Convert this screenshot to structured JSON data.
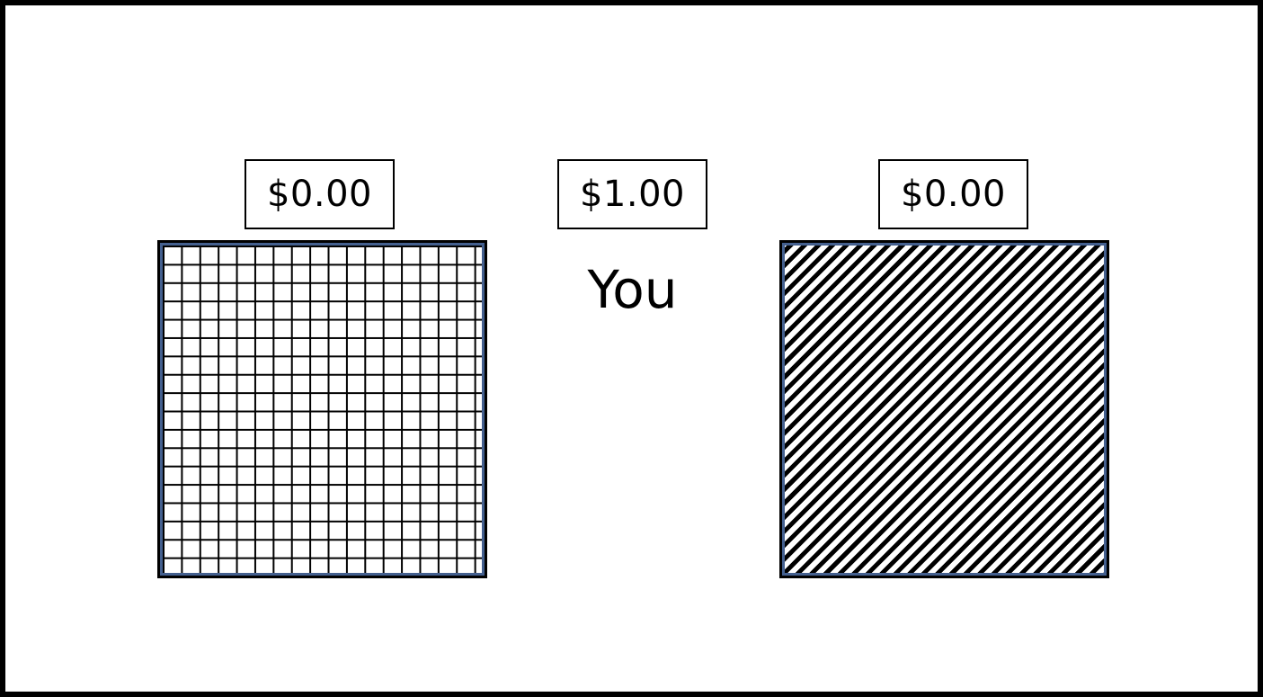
{
  "left_option": {
    "amount": "$0.00",
    "pattern": "grid-pattern"
  },
  "center": {
    "amount": "$1.00",
    "label": "You"
  },
  "right_option": {
    "amount": "$0.00",
    "pattern": "diagonal-stripe-pattern"
  },
  "colors": {
    "border": "#000000",
    "inner_border": "#44608f",
    "background": "#ffffff"
  }
}
